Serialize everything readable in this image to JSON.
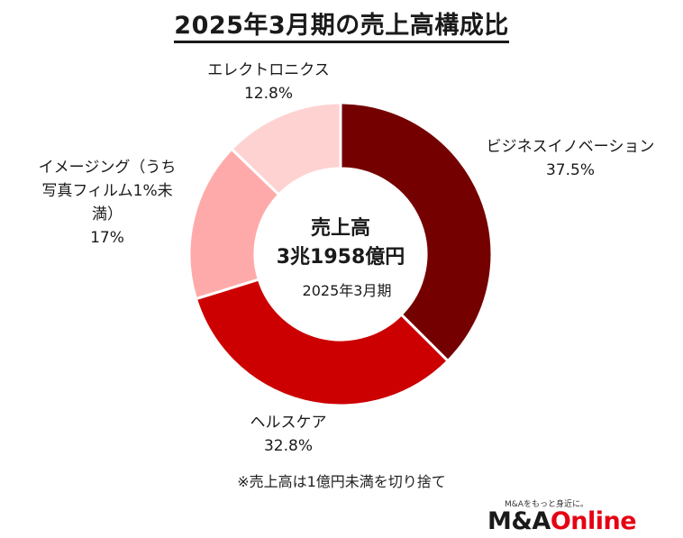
{
  "title": "2025年3月期の売上高構成比",
  "center": {
    "line1": "売上高",
    "line2": "3兆1958億円",
    "line3": "2025年3月期"
  },
  "footnote": "※売上高は1億円未満を切り捨て",
  "logo": {
    "tagline": "M&Aをもっと身近に。",
    "name_black": "M&A",
    "name_red": "Online"
  },
  "colors": {
    "business_innovation": "#750000",
    "healthcare": "#cc0000",
    "imaging": "#ffaaaa",
    "electronics": "#ffd2d2"
  },
  "chart_data": {
    "type": "pie",
    "title": "2025年3月期の売上高構成比",
    "series": [
      {
        "name": "ビジネスイノベーション",
        "value": 37.5,
        "label": "37.5%",
        "label_lines": [
          "ビジネスイノベーション"
        ],
        "color": "#750000"
      },
      {
        "name": "ヘルスケア",
        "value": 32.8,
        "label": "32.8%",
        "label_lines": [
          "ヘルスケア"
        ],
        "color": "#cc0000"
      },
      {
        "name": "イメージング（うち写真フィルム1%未満）",
        "value": 17,
        "label": "17%",
        "label_lines": [
          "イメージング（うち",
          "写真フィルム1%未",
          "満）"
        ],
        "color": "#ffaaaa"
      },
      {
        "name": "エレクトロニクス",
        "value": 12.8,
        "label": "12.8%",
        "label_lines": [
          "エレクトロニクス"
        ],
        "color": "#ffd2d2"
      }
    ],
    "legend": "none"
  }
}
